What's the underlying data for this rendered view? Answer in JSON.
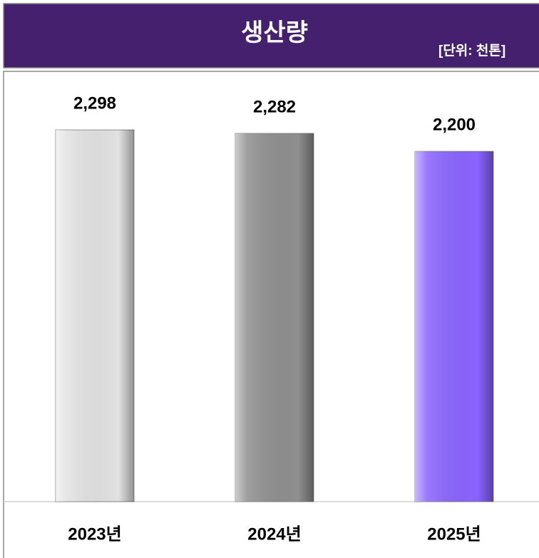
{
  "chart_data": {
    "type": "bar",
    "title": "생산량",
    "subtitle": "[단위: 천톤]",
    "categories": [
      "2023년",
      "2024년",
      "2025년"
    ],
    "values": [
      2298,
      2282,
      2200
    ],
    "value_labels": [
      "2,298",
      "2,282",
      "2,200"
    ],
    "colors": [
      "#e2e2e2",
      "#8f8f8f",
      "#8a63ff"
    ],
    "ylim": [
      600,
      2360
    ]
  }
}
